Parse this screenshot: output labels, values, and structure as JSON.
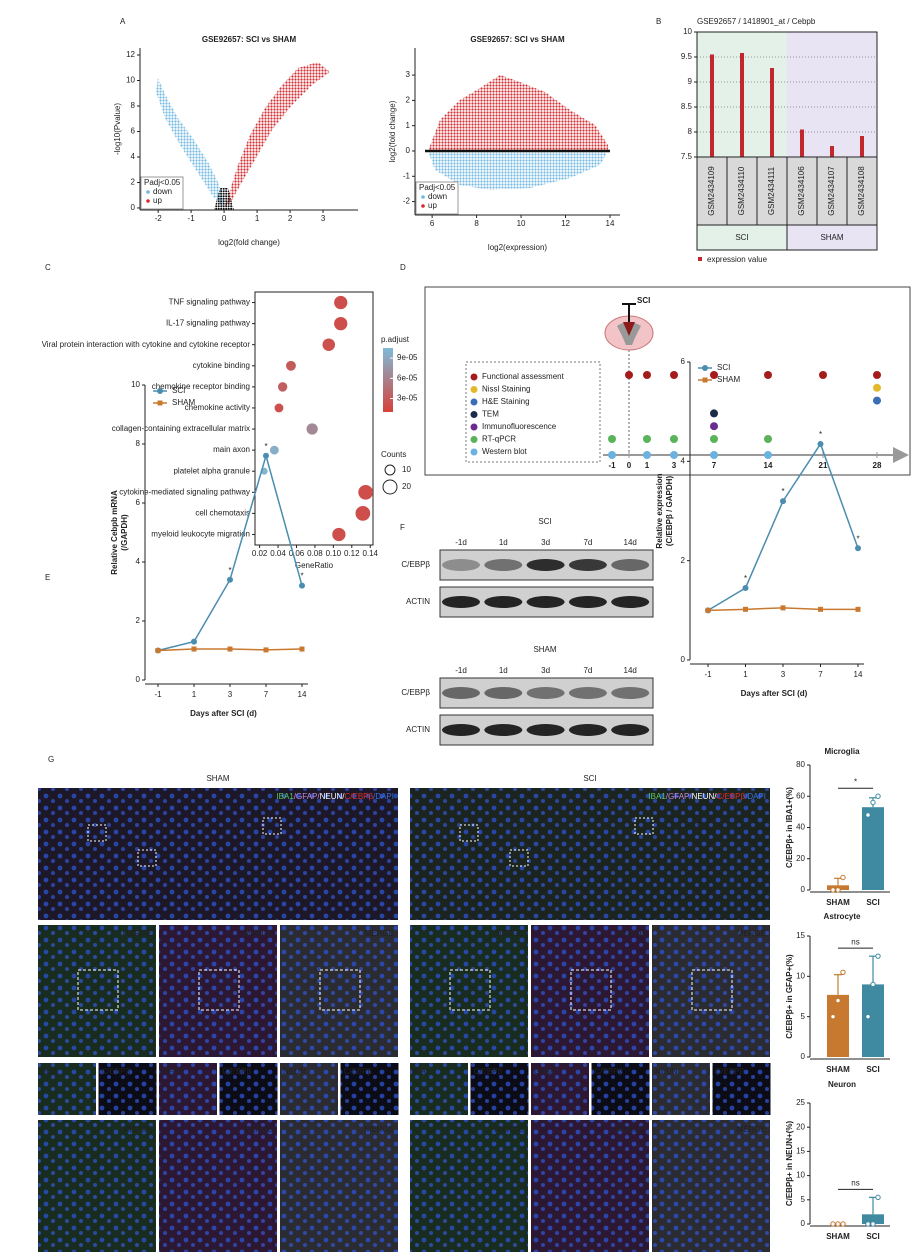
{
  "chart_data": [
    {
      "type": "scatter",
      "title": "GSE92657: SCI vs SHAM",
      "xlabel": "log2(fold change)",
      "ylabel": "-log10(Pvalue)",
      "xlim": [
        -2.55,
        4.06
      ],
      "xticks": [
        -2,
        -1,
        0,
        1,
        2,
        3
      ],
      "ylim": [
        -0.16,
        12.55
      ],
      "yticks": [
        0,
        2,
        4,
        6,
        8,
        10,
        12
      ],
      "legend_title": "Padj<0.05",
      "series": [
        {
          "name": "down",
          "color": "#72b8e2"
        },
        {
          "name": "up",
          "color": "#d42a2f"
        }
      ]
    },
    {
      "type": "scatter",
      "title": "GSE92657: SCI vs SHAM",
      "xlabel": "log2(expression)",
      "ylabel": "log2(fold change)",
      "xlim": [
        5.23,
        14.45
      ],
      "xticks": [
        6,
        8,
        10,
        12,
        14
      ],
      "ylim": [
        -2.53,
        4.07
      ],
      "yticks": [
        -2,
        -1,
        0,
        1,
        2,
        3
      ],
      "legend_title": "Padj<0.05",
      "series": [
        {
          "name": "down",
          "color": "#72b8e2"
        },
        {
          "name": "up",
          "color": "#d42a2f"
        }
      ]
    },
    {
      "type": "bar",
      "title": "GSE92657 / 1418901_at / Cebpb",
      "categories": [
        "GSM2434109",
        "GSM2434110",
        "GSM2434111",
        "GSM2434106",
        "GSM2434107",
        "GSM2434108"
      ],
      "values": [
        9.55,
        9.58,
        9.28,
        8.05,
        7.72,
        7.92
      ],
      "color": "#c0282d",
      "ylim": [
        7.5,
        10
      ],
      "yticks": [
        7.5,
        8,
        8.5,
        9,
        9.5,
        10
      ],
      "grid": true,
      "groups": [
        {
          "name": "SCI",
          "color": "#e3f1e8",
          "members": [
            "GSM2434109",
            "GSM2434110",
            "GSM2434111"
          ]
        },
        {
          "name": "SHAM",
          "color": "#e8e4f4",
          "members": [
            "GSM2434106",
            "GSM2434107",
            "GSM2434108"
          ]
        }
      ],
      "legend": "expression value"
    },
    {
      "type": "dot",
      "xlabel": "GeneRatio",
      "categories": [
        "TNF signaling pathway",
        "IL-17 signaling pathway",
        "Viral protein interaction with cytokine and cytokine receptor",
        "cytokine binding",
        "chemokine receptor binding",
        "chemokine activity",
        "collagen-containing extracellular matrix",
        "main axon",
        "platelet alpha granule",
        "cytokine-mediated signaling pathway",
        "cell chemotaxis",
        "myeloid leukocyte migration"
      ],
      "values": [
        0.108,
        0.108,
        0.095,
        0.054,
        0.045,
        0.041,
        0.077,
        0.036,
        0.025,
        0.135,
        0.132,
        0.106
      ],
      "counts": [
        18,
        18,
        16,
        10,
        9,
        8,
        13,
        8,
        5,
        22,
        22,
        18
      ],
      "p_adjust": [
        2e-05,
        2e-05,
        2.2e-05,
        3e-05,
        3.3e-05,
        2.2e-05,
        6.5e-05,
        9.5e-05,
        0.0001,
        2e-05,
        2e-05,
        2e-05
      ],
      "xlim": [
        0.015,
        0.143
      ],
      "xticks": [
        0.02,
        0.04,
        0.06,
        0.08,
        {
          "value": 0.1,
          "label": "0.10"
        },
        0.12,
        0.14
      ],
      "color_title": "p.adjust",
      "color_lim": [
        1e-05,
        0.000105
      ],
      "color_low": "#d6413a",
      "color_high": "#7ebbd8",
      "color_ticks": [
        {
          "value": 9e-05,
          "label": "9e-05"
        },
        {
          "value": 6e-05,
          "label": "6e-05"
        },
        {
          "value": 3e-05,
          "label": "3e-05"
        }
      ],
      "size_title": "Counts",
      "size_ticks": [
        10,
        20
      ]
    },
    {
      "type": "line",
      "xlabel": "Days after SCI (d)",
      "ylabel": [
        "Relative Cebpb mRNA",
        "(/GAPDH)"
      ],
      "categories": [
        "-1",
        "1",
        "3",
        "7",
        "14"
      ],
      "ylim": [
        0,
        10
      ],
      "yticks": [
        0,
        2,
        4,
        6,
        8,
        10
      ],
      "series": [
        {
          "name": "SCI",
          "color": "#4a8db0",
          "values": [
            1.0,
            1.3,
            3.4,
            7.6,
            3.2
          ]
        },
        {
          "name": "SHAM",
          "color": "#c8782f",
          "values": [
            1.0,
            1.05,
            1.05,
            1.02,
            1.05
          ]
        }
      ],
      "significance": [
        null,
        null,
        "*",
        "*",
        "*"
      ]
    },
    {
      "type": "line",
      "xlabel": "Days after SCI (d)",
      "ylabel": [
        "Relative expression",
        "(C/EBPβ / GAPDH)"
      ],
      "categories": [
        "-1",
        "1",
        "3",
        "7",
        "14"
      ],
      "ylim": [
        0,
        6
      ],
      "yticks": [
        0,
        2,
        4,
        6
      ],
      "series": [
        {
          "name": "SCI",
          "color": "#4a8db0",
          "values": [
            1.0,
            1.45,
            3.2,
            4.35,
            2.25
          ]
        },
        {
          "name": "SHAM",
          "color": "#c8782f",
          "values": [
            1.0,
            1.02,
            1.05,
            1.02,
            1.02
          ]
        }
      ],
      "significance": [
        null,
        "*",
        "*",
        "*",
        "*"
      ]
    },
    {
      "type": "bar",
      "title": "Microglia",
      "ylabel": "C/EBPβ+ in IBA1+(%)",
      "categories": [
        "SHAM",
        "SCI"
      ],
      "values": [
        3,
        53
      ],
      "errors": [
        4.5,
        6
      ],
      "points": [
        [
          0,
          0,
          8
        ],
        [
          48,
          56,
          60
        ]
      ],
      "colors": [
        "#c6792f",
        "#3f8aa1"
      ],
      "ylim": [
        0,
        80
      ],
      "yticks": [
        0,
        20,
        40,
        60,
        80
      ],
      "significance": "*"
    },
    {
      "type": "bar",
      "title": "Astrocyte",
      "ylabel": "C/EBPβ+ in GFAP+(%)",
      "categories": [
        "SHAM",
        "SCI"
      ],
      "values": [
        7.7,
        9
      ],
      "errors": [
        2.5,
        3.5
      ],
      "points": [
        [
          5,
          7,
          10.5
        ],
        [
          5,
          9,
          12.5
        ]
      ],
      "colors": [
        "#c6792f",
        "#3f8aa1"
      ],
      "ylim": [
        0,
        15
      ],
      "yticks": [
        0,
        5,
        10,
        15
      ],
      "significance": "ns"
    },
    {
      "type": "bar",
      "title": "Neuron",
      "ylabel": "C/EBPβ+ in NEUN+(%)",
      "categories": [
        "SHAM",
        "SCI"
      ],
      "values": [
        0,
        2
      ],
      "errors": [
        0,
        3.5
      ],
      "points": [
        [
          0,
          0,
          0
        ],
        [
          0,
          0,
          5.5
        ]
      ],
      "colors": [
        "#c6792f",
        "#3f8aa1"
      ],
      "ylim": [
        0,
        25
      ],
      "yticks": [
        0,
        5,
        10,
        15,
        20,
        25
      ],
      "significance": "ns"
    }
  ],
  "figure": {
    "panel_labels": [
      "A",
      "B",
      "C",
      "D",
      "E",
      "F",
      "G"
    ],
    "timeline": {
      "injury_label": "SCI",
      "ticks": [
        -1,
        0,
        1,
        3,
        7,
        14,
        21,
        28
      ],
      "items": [
        {
          "name": "Functional assessment",
          "color": "#a51c1c",
          "days": [
            0,
            1,
            3,
            7,
            14,
            21,
            28
          ]
        },
        {
          "name": "Nissl Staining",
          "color": "#e3b92c",
          "days": [
            28
          ]
        },
        {
          "name": "H&E Staining",
          "color": "#3a6fb6",
          "days": [
            28
          ]
        },
        {
          "name": "TEM",
          "color": "#1b2a4a",
          "days": [
            7
          ]
        },
        {
          "name": "Immunofluorescence",
          "color": "#6a2c8f",
          "days": [
            7
          ]
        },
        {
          "name": "RT-qPCR",
          "color": "#5ab25a",
          "days": [
            -1,
            1,
            3,
            7,
            14
          ]
        },
        {
          "name": "Western blot",
          "color": "#6bb2e0",
          "days": [
            -1,
            1,
            3,
            7,
            14
          ]
        }
      ]
    },
    "blots": [
      {
        "title": "SCI",
        "lanes": [
          "-1d",
          "1d",
          "3d",
          "7d",
          "14d"
        ],
        "rows": [
          "C/EBPβ",
          "ACTIN"
        ]
      },
      {
        "title": "SHAM",
        "lanes": [
          "-1d",
          "1d",
          "3d",
          "7d",
          "14d"
        ],
        "rows": [
          "C/EBPβ",
          "ACTIN"
        ]
      }
    ],
    "microscopy": {
      "groups": [
        {
          "title": "SHAM",
          "overview_label": [
            "IBA1",
            "/GFAP/",
            "NEUN/",
            "C/EBPβ",
            "/DAPI"
          ],
          "merge_labels": [
            "MERGE",
            "MERGE",
            "MERGE"
          ],
          "channel_labels": [
            "IBA1",
            "C/EBPβ",
            "GFAP",
            "C/EBPβ",
            "NEUN",
            "C/EBPβ"
          ],
          "zoom_labels": [
            "MERGE",
            "MERGE",
            "MERGE"
          ]
        },
        {
          "title": "SCI",
          "overview_label": [
            "IBA1",
            "/GFAP/",
            "NEUN/",
            "C/EBPβ",
            "/DAPI"
          ],
          "stray_label": "E",
          "merge_labels": [
            "MERGE",
            "MERGE",
            "MERGE"
          ],
          "channel_labels": [
            "IBA1",
            "C/EBPβ",
            "GFAP",
            "C/EBPβ",
            "NEUN",
            "C/EBPβ"
          ],
          "zoom_labels": [
            "MERGE",
            "MERGE",
            "MERGE"
          ]
        }
      ]
    }
  }
}
